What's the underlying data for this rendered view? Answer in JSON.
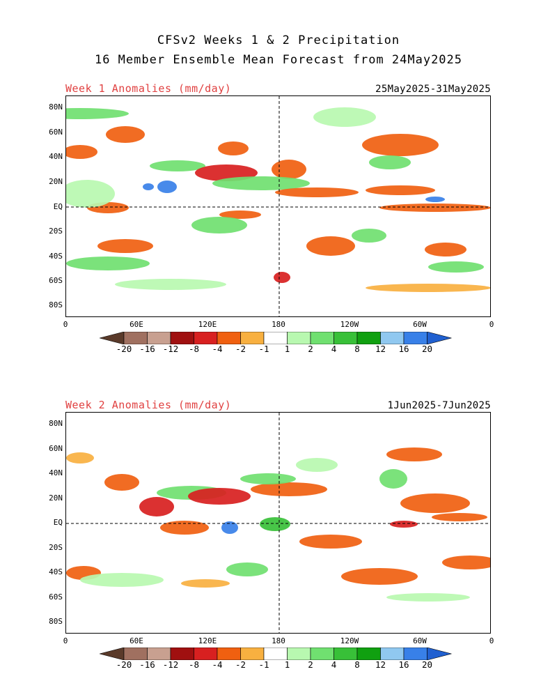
{
  "title_line1": "CFSv2 Weeks 1 & 2 Precipitation",
  "title_line2": "16 Member Ensemble Mean Forecast from 24May2025",
  "panels": [
    {
      "label": "Week 1 Anomalies (mm/day)",
      "dates": "25May2025-31May2025",
      "lat_labels": [
        "80N",
        "60N",
        "40N",
        "20N",
        "EQ",
        "20S",
        "40S",
        "60S",
        "80S"
      ],
      "lon_labels": [
        "0",
        "60E",
        "120E",
        "180",
        "120W",
        "60W",
        "0"
      ]
    },
    {
      "label": "Week 2 Anomalies (mm/day)",
      "dates": "1Jun2025-7Jun2025",
      "lat_labels": [
        "80N",
        "60N",
        "40N",
        "20N",
        "EQ",
        "20S",
        "40S",
        "60S",
        "80S"
      ],
      "lon_labels": [
        "0",
        "60E",
        "120E",
        "180",
        "120W",
        "60W",
        "0"
      ]
    }
  ],
  "colorbar": {
    "ticks": [
      "-20",
      "-16",
      "-12",
      "-8",
      "-4",
      "-2",
      "-1",
      "1",
      "2",
      "4",
      "8",
      "12",
      "16",
      "20"
    ],
    "colors": [
      "#5a3a2a",
      "#a07060",
      "#c8a090",
      "#a01010",
      "#d82020",
      "#f06010",
      "#f8b040",
      "#ffffff",
      "#b8f8b0",
      "#70e070",
      "#38c038",
      "#10a010",
      "#90c8f0",
      "#3880e8",
      "#2060d0"
    ]
  }
}
